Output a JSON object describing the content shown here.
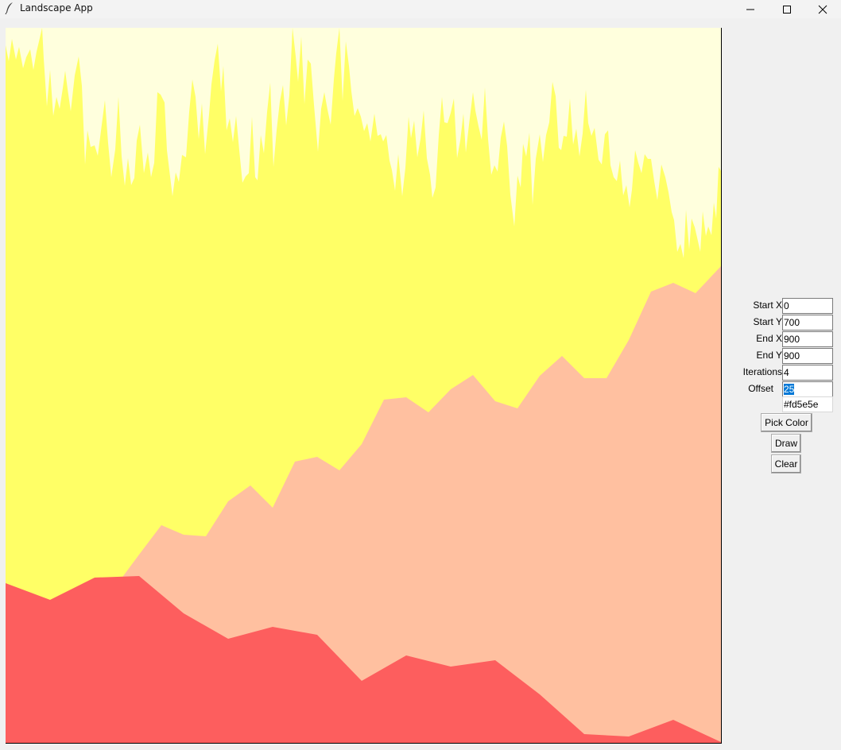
{
  "window": {
    "title": "Landscape App"
  },
  "icons": {
    "app": "feather-icon",
    "minimize": "minimize-icon",
    "maximize": "maximize-icon",
    "close": "close-icon"
  },
  "canvas": {
    "colors": {
      "sky": "#ffffdd",
      "yellow": "#ffff66",
      "peach": "#ffc0a0",
      "red": "#fd5e5e"
    }
  },
  "form": {
    "start_x": {
      "label": "Start X",
      "value": "0"
    },
    "start_y": {
      "label": "Start Y",
      "value": "700"
    },
    "end_x": {
      "label": "End X",
      "value": "900"
    },
    "end_y": {
      "label": "End Y",
      "value": "900"
    },
    "iterations": {
      "label": "Iterations",
      "value": "4"
    },
    "offset": {
      "label": "Offset",
      "value": "25"
    },
    "color_value": "#fd5e5e"
  },
  "buttons": {
    "pick_color": "Pick Color",
    "draw": "Draw",
    "clear": "Clear"
  }
}
